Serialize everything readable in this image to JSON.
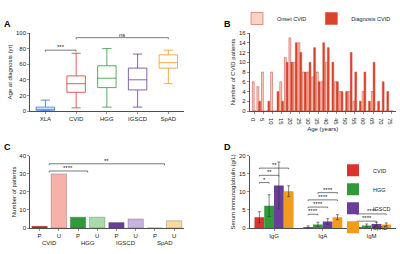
{
  "chart_data": [
    {
      "panel": "A",
      "type": "box",
      "ylabel": "Age at diagnosis (yr)",
      "categories": [
        "XLA",
        "CVID",
        "HGG",
        "IGSCD",
        "SpAD"
      ],
      "colors": [
        "#2f6fd0",
        "#d9342b",
        "#2e9b3a",
        "#6a3d9a",
        "#f29b1d"
      ],
      "min": [
        0,
        4,
        5,
        5,
        35
      ],
      "q1": [
        1,
        24,
        30,
        27,
        55
      ],
      "median": [
        2,
        35,
        42,
        40,
        62
      ],
      "q3": [
        5,
        45,
        58,
        55,
        72
      ],
      "max": [
        14,
        74,
        80,
        73,
        78
      ],
      "ylim": [
        0,
        100
      ],
      "yticks": [
        0,
        20,
        40,
        60,
        80,
        100
      ],
      "grid": false,
      "annotations": [
        {
          "text": "***",
          "from": "XLA",
          "to": "CVID"
        },
        {
          "text": "ns",
          "from": "CVID",
          "to": "SpAD"
        }
      ]
    },
    {
      "panel": "B",
      "type": "bar",
      "xlabel": "Age (years)",
      "ylabel": "Number of CVID patients",
      "x": [
        0,
        2.5,
        5,
        7.5,
        10,
        12.5,
        15,
        17.5,
        20,
        22.5,
        25,
        27.5,
        30,
        32.5,
        35,
        37.5,
        40,
        42.5,
        45,
        47.5,
        50,
        52.5,
        55,
        57.5,
        60,
        62.5,
        65,
        67.5,
        70,
        72.5,
        75
      ],
      "series": [
        {
          "name": "Onset CVID",
          "color": "#f8d5c2",
          "values": [
            6,
            5,
            8,
            0,
            8,
            0,
            6,
            11,
            15,
            10,
            14,
            8,
            8,
            7,
            8,
            6,
            10,
            0,
            6,
            4,
            0,
            4,
            2,
            0,
            4,
            0,
            4,
            0,
            0,
            0,
            0
          ]
        },
        {
          "name": "Diagnosis CVID",
          "color": "#d9432c",
          "values": [
            0,
            2,
            0,
            2,
            0,
            4,
            2,
            10,
            10,
            14,
            12,
            8,
            10,
            13,
            6,
            14,
            13,
            10,
            6,
            4,
            4,
            12,
            8,
            2,
            8,
            2,
            10,
            2,
            6,
            4,
            0
          ]
        }
      ],
      "xlim": [
        -2.5,
        77.5
      ],
      "xticks": [
        0,
        5,
        10,
        15,
        20,
        25,
        30,
        35,
        40,
        45,
        50,
        55,
        60,
        65,
        70,
        75
      ],
      "ylim": [
        0,
        16
      ],
      "yticks": [
        0,
        2,
        4,
        6,
        8,
        10,
        12,
        14,
        16
      ],
      "legend": "top right",
      "grid": false
    },
    {
      "panel": "C",
      "type": "bar",
      "ylabel": "Number of patients",
      "categories": [
        "P",
        "U",
        "P",
        "U",
        "P",
        "U",
        "P",
        "U"
      ],
      "groups": [
        "CVID",
        "HGG",
        "IGSCD",
        "SpAD"
      ],
      "values": [
        1,
        30,
        6,
        6,
        3,
        5,
        0,
        4
      ],
      "colors": [
        "#c0281c",
        "#f6b2a8",
        "#2e9b3a",
        "#a9dba8",
        "#6a3d9a",
        "#c7b3e0",
        "#e08a10",
        "#fbd9a0"
      ],
      "ylim": [
        0,
        40
      ],
      "yticks": [
        0,
        10,
        20,
        30,
        40
      ],
      "grid": false,
      "annotations": [
        {
          "text": "****",
          "from": "CVID",
          "to": "HGG"
        },
        {
          "text": "**",
          "from": "CVID",
          "to": "SpAD"
        }
      ]
    },
    {
      "panel": "D",
      "type": "bar",
      "ylabel": "Serum immunoglobulin (g/L)",
      "categories": [
        "IgG",
        "IgA",
        "IgM"
      ],
      "series": [
        {
          "name": "CVID",
          "color": "#d9342b",
          "values": [
            3,
            0.3,
            0.3
          ],
          "errors": [
            1.5,
            0.3,
            0.2
          ]
        },
        {
          "name": "HGG",
          "color": "#2e9b3a",
          "values": [
            6.2,
            1.0,
            0.7
          ],
          "errors": [
            3,
            0.6,
            0.4
          ]
        },
        {
          "name": "IGSCD",
          "color": "#6a3d9a",
          "values": [
            11.8,
            1.8,
            1.1
          ],
          "errors": [
            6.5,
            0.8,
            0.5
          ]
        },
        {
          "name": "SpAD",
          "color": "#f29b1d",
          "values": [
            10.2,
            3.0,
            1.0
          ],
          "errors": [
            1.5,
            0.7,
            0.4
          ]
        }
      ],
      "ylim": [
        0,
        20
      ],
      "yticks": [
        0,
        5,
        10,
        15,
        20
      ],
      "legend": "top right",
      "grid": false,
      "annotations": [
        {
          "text": "*",
          "category": "IgG",
          "from": "CVID",
          "to": "HGG"
        },
        {
          "text": "**",
          "category": "IgG",
          "from": "CVID",
          "to": "IGSCD"
        },
        {
          "text": "**",
          "category": "IgG",
          "from": "CVID",
          "to": "SpAD"
        },
        {
          "text": "****",
          "category": "IgA",
          "from": "CVID",
          "to": "HGG"
        },
        {
          "text": "****",
          "category": "IgA",
          "from": "CVID",
          "to": "IGSCD"
        },
        {
          "text": "****",
          "category": "IgA",
          "from": "CVID",
          "to": "SpAD"
        },
        {
          "text": "****",
          "category": "IgA",
          "from": "HGG",
          "to": "SpAD"
        },
        {
          "text": "****",
          "category": "IgM",
          "from": "CVID",
          "to": "IGSCD"
        },
        {
          "text": "****",
          "category": "IgM",
          "from": "CVID",
          "to": "SpAD"
        }
      ]
    }
  ]
}
